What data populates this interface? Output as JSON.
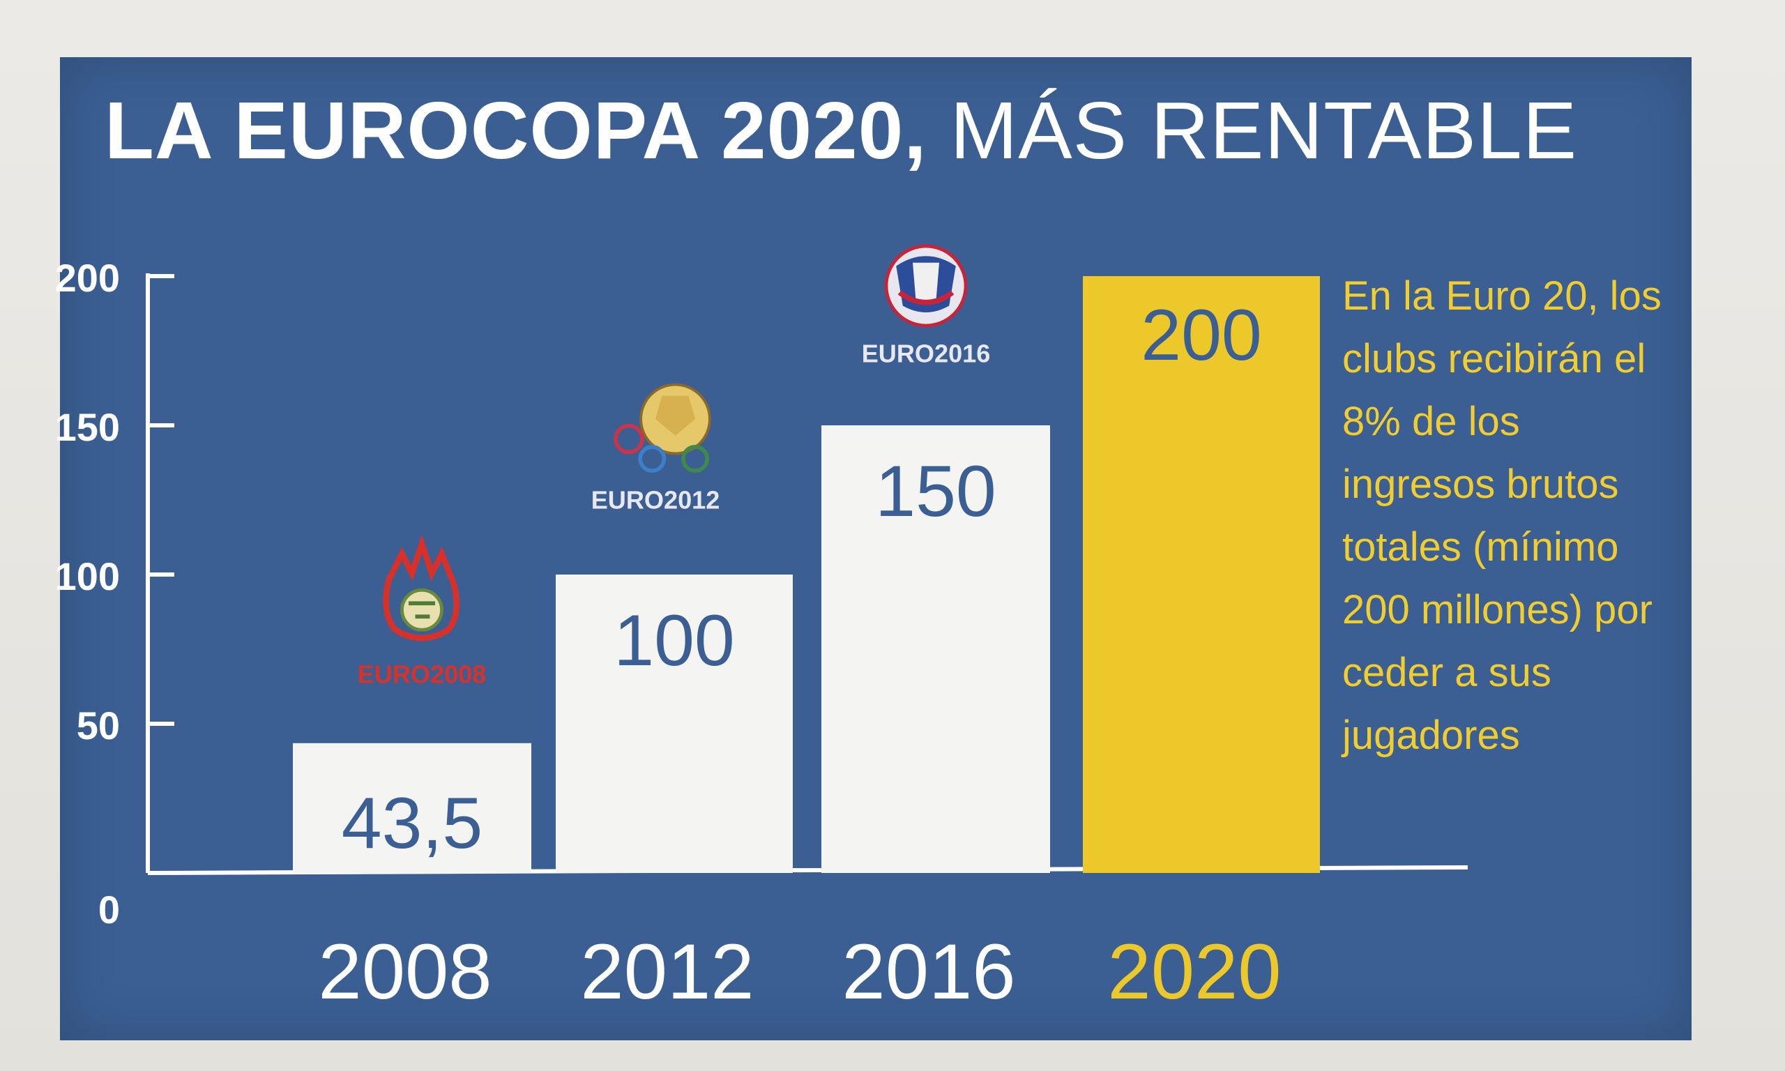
{
  "title_bold": "LA EUROCOPA 2020,",
  "title_light": "MÁS RENTABLE",
  "note": "En la Euro 20, los clubs recibirán el 8% de los ingresos brutos totales (mínimo 200 millones) por ceder a sus jugadores",
  "logos": [
    "EURO2008",
    "EURO2012",
    "EURO2016"
  ],
  "colors": {
    "panel": "#3b5f93",
    "bar": "#f4f4f2",
    "highlight": "#ecc82a",
    "axis": "#ffffff",
    "note_text": "#f2cd2e"
  },
  "chart_data": {
    "type": "bar",
    "categories": [
      "2008",
      "2012",
      "2016",
      "2020"
    ],
    "values": [
      43.5,
      100,
      150,
      200
    ],
    "value_labels": [
      "43,5",
      "100",
      "150",
      "200"
    ],
    "highlight_index": 3,
    "ylim": [
      0,
      200
    ],
    "yticks": [
      0,
      50,
      100,
      150,
      200
    ],
    "ytick_labels": [
      "0",
      "50",
      "100",
      "150",
      "200"
    ],
    "title": "LA EUROCOPA 2020, MÁS RENTABLE",
    "xlabel": "",
    "ylabel": "",
    "grid": false,
    "legend": "none"
  }
}
